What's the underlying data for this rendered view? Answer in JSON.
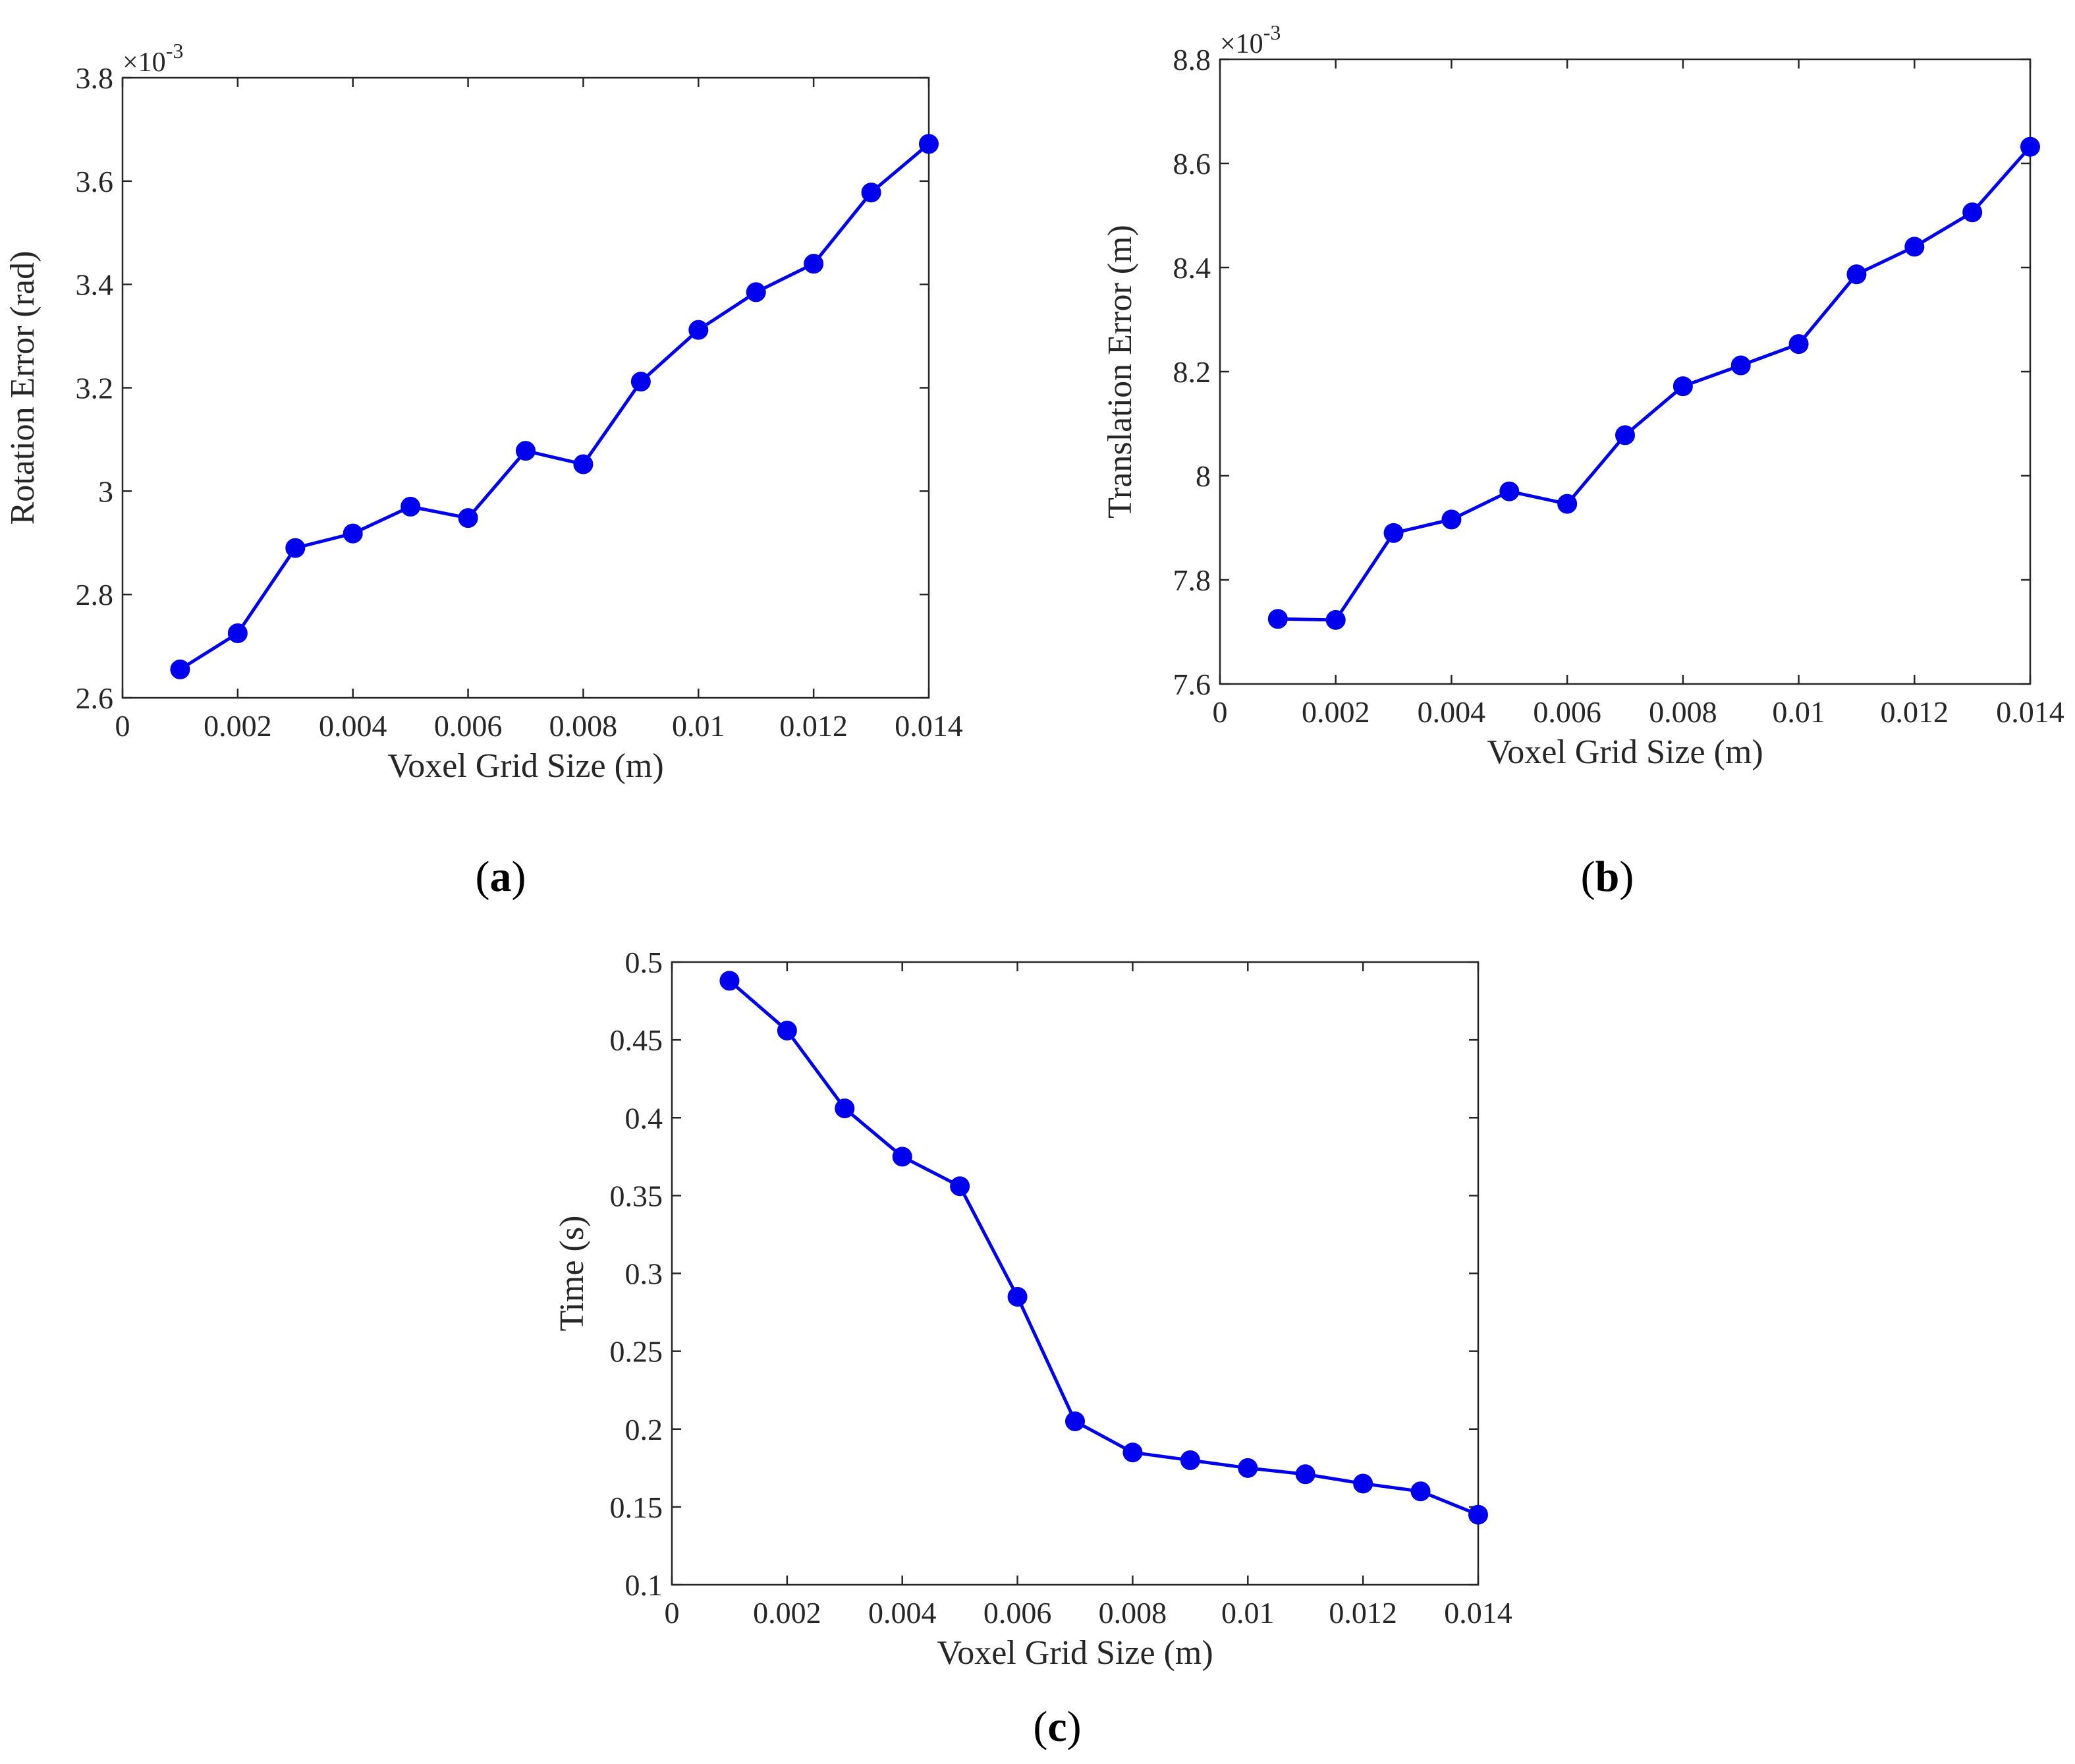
{
  "figure": {
    "line_color": "#0000ee",
    "axis_color": "#262626"
  },
  "chart_data": [
    {
      "type": "line",
      "panel_label": "a",
      "xlabel": "Voxel Grid Size (m)",
      "ylabel": "Rotation Error (rad)",
      "y_multiplier": "×10",
      "y_exponent": "-3",
      "xlim": [
        0,
        0.014
      ],
      "ylim": [
        2.6,
        3.8
      ],
      "xticks": [
        0,
        0.002,
        0.004,
        0.006,
        0.008,
        0.01,
        0.012,
        0.014
      ],
      "xtick_labels": [
        "0",
        "0.002",
        "0.004",
        "0.006",
        "0.008",
        "0.01",
        "0.012",
        "0.014"
      ],
      "yticks": [
        2.6,
        2.8,
        3.0,
        3.2,
        3.4,
        3.6,
        3.8
      ],
      "ytick_labels": [
        "2.6",
        "2.8",
        "3",
        "3.2",
        "3.4",
        "3.6",
        "3.8"
      ],
      "x": [
        0.001,
        0.002,
        0.003,
        0.004,
        0.005,
        0.006,
        0.007,
        0.008,
        0.009,
        0.01,
        0.011,
        0.012,
        0.013,
        0.014
      ],
      "y": [
        2.655,
        2.725,
        2.89,
        2.918,
        2.97,
        2.948,
        3.078,
        3.052,
        3.212,
        3.312,
        3.385,
        3.44,
        3.578,
        3.672
      ],
      "grid": false,
      "marker": "circle"
    },
    {
      "type": "line",
      "panel_label": "b",
      "xlabel": "Voxel Grid Size (m)",
      "ylabel": "Translation Error (m)",
      "y_multiplier": "×10",
      "y_exponent": "-3",
      "xlim": [
        0,
        0.014
      ],
      "ylim": [
        7.6,
        8.8
      ],
      "xticks": [
        0,
        0.002,
        0.004,
        0.006,
        0.008,
        0.01,
        0.012,
        0.014
      ],
      "xtick_labels": [
        "0",
        "0.002",
        "0.004",
        "0.006",
        "0.008",
        "0.01",
        "0.012",
        "0.014"
      ],
      "yticks": [
        7.6,
        7.8,
        8.0,
        8.2,
        8.4,
        8.6,
        8.8
      ],
      "ytick_labels": [
        "7.6",
        "7.8",
        "8",
        "8.2",
        "8.4",
        "8.6",
        "8.8"
      ],
      "x": [
        0.001,
        0.002,
        0.003,
        0.004,
        0.005,
        0.006,
        0.007,
        0.008,
        0.009,
        0.01,
        0.011,
        0.012,
        0.013,
        0.014
      ],
      "y": [
        7.725,
        7.723,
        7.89,
        7.916,
        7.97,
        7.946,
        8.078,
        8.172,
        8.212,
        8.253,
        8.387,
        8.44,
        8.506,
        8.632
      ],
      "grid": false,
      "marker": "circle"
    },
    {
      "type": "line",
      "panel_label": "c",
      "xlabel": "Voxel Grid Size (m)",
      "ylabel": "Time (s)",
      "y_multiplier": "",
      "y_exponent": "",
      "xlim": [
        0,
        0.014
      ],
      "ylim": [
        0.1,
        0.5
      ],
      "xticks": [
        0,
        0.002,
        0.004,
        0.006,
        0.008,
        0.01,
        0.012,
        0.014
      ],
      "xtick_labels": [
        "0",
        "0.002",
        "0.004",
        "0.006",
        "0.008",
        "0.01",
        "0.012",
        "0.014"
      ],
      "yticks": [
        0.1,
        0.15,
        0.2,
        0.25,
        0.3,
        0.35,
        0.4,
        0.45,
        0.5
      ],
      "ytick_labels": [
        "0.1",
        "0.15",
        "0.2",
        "0.25",
        "0.3",
        "0.35",
        "0.4",
        "0.45",
        "0.5"
      ],
      "x": [
        0.001,
        0.002,
        0.003,
        0.004,
        0.005,
        0.006,
        0.007,
        0.008,
        0.009,
        0.01,
        0.011,
        0.012,
        0.013,
        0.014
      ],
      "y": [
        0.488,
        0.456,
        0.406,
        0.375,
        0.356,
        0.285,
        0.205,
        0.185,
        0.18,
        0.175,
        0.171,
        0.165,
        0.16,
        0.145
      ],
      "grid": false,
      "marker": "circle"
    }
  ]
}
